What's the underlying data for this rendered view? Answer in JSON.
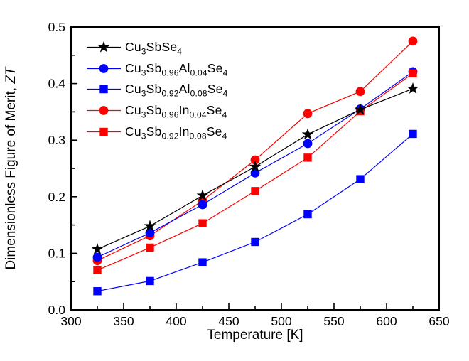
{
  "figure": {
    "background": "#ffffff",
    "frame_color": "#000000"
  },
  "chart_data": {
    "type": "line",
    "title": "",
    "xlabel": "Temperature [K]",
    "ylabel": "Dimensionless Figure of Merit, ZT",
    "ylabel_main": "Dimensionless Figure of Merit, ",
    "ylabel_italic": "ZT",
    "xlim": [
      300,
      650
    ],
    "ylim": [
      0,
      0.5
    ],
    "x_major_ticks": [
      300,
      350,
      400,
      450,
      500,
      550,
      600,
      650
    ],
    "x_tick_labels": [
      "300",
      "350",
      "400",
      "450",
      "500",
      "550",
      "600",
      "650"
    ],
    "x_minor_ticks": [
      325,
      375,
      425,
      475,
      525,
      575,
      625
    ],
    "y_major_ticks": [
      0,
      0.1,
      0.2,
      0.3,
      0.4,
      0.5
    ],
    "y_tick_labels": [
      "0.0",
      "0.1",
      "0.2",
      "0.3",
      "0.4",
      "0.5"
    ],
    "y_minor_ticks": [
      0.05,
      0.15,
      0.25,
      0.35,
      0.45
    ],
    "grid": false,
    "legend_position": "top-left-inside",
    "x": [
      325,
      375,
      425,
      475,
      525,
      575,
      625
    ],
    "series": [
      {
        "name": "Cu3SbSe4",
        "name_parts": [
          [
            "t",
            "Cu"
          ],
          [
            "s",
            "3"
          ],
          [
            "t",
            "SbSe"
          ],
          [
            "s",
            "4"
          ]
        ],
        "marker": "star",
        "color": "#000000",
        "values": [
          0.107,
          0.148,
          0.202,
          0.253,
          0.31,
          0.354,
          0.391
        ]
      },
      {
        "name": "Cu3Sb0.96Al0.04Se4",
        "name_parts": [
          [
            "t",
            "Cu"
          ],
          [
            "s",
            "3"
          ],
          [
            "t",
            "Sb"
          ],
          [
            "s",
            "0.96"
          ],
          [
            "t",
            "Al"
          ],
          [
            "s",
            "0.04"
          ],
          [
            "t",
            "Se"
          ],
          [
            "s",
            "4"
          ]
        ],
        "marker": "circle",
        "color": "#0000ff",
        "values": [
          0.093,
          0.136,
          0.186,
          0.242,
          0.294,
          0.355,
          0.421
        ]
      },
      {
        "name": "Cu3Sb0.92Al0.08Se4",
        "name_parts": [
          [
            "t",
            "Cu"
          ],
          [
            "s",
            "3"
          ],
          [
            "t",
            "Sb"
          ],
          [
            "s",
            "0.92"
          ],
          [
            "t",
            "Al"
          ],
          [
            "s",
            "0.08"
          ],
          [
            "t",
            "Se"
          ],
          [
            "s",
            "4"
          ]
        ],
        "marker": "square",
        "color": "#0000ff",
        "values": [
          0.033,
          0.051,
          0.084,
          0.12,
          0.169,
          0.231,
          0.311
        ]
      },
      {
        "name": "Cu3Sb0.96In0.04Se4",
        "name_parts": [
          [
            "t",
            "Cu"
          ],
          [
            "s",
            "3"
          ],
          [
            "t",
            "Sb"
          ],
          [
            "s",
            "0.96"
          ],
          [
            "t",
            "In"
          ],
          [
            "s",
            "0.04"
          ],
          [
            "t",
            "Se"
          ],
          [
            "s",
            "4"
          ]
        ],
        "marker": "circle",
        "color": "#ff0000",
        "values": [
          0.087,
          0.131,
          0.193,
          0.265,
          0.347,
          0.386,
          0.475
        ]
      },
      {
        "name": "Cu3Sb0.92In0.08Se4",
        "name_parts": [
          [
            "t",
            "Cu"
          ],
          [
            "s",
            "3"
          ],
          [
            "t",
            "Sb"
          ],
          [
            "s",
            "0.92"
          ],
          [
            "t",
            "In"
          ],
          [
            "s",
            "0.08"
          ],
          [
            "t",
            "Se"
          ],
          [
            "s",
            "4"
          ]
        ],
        "marker": "square",
        "color": "#ff0000",
        "values": [
          0.07,
          0.11,
          0.153,
          0.21,
          0.269,
          0.351,
          0.418
        ]
      }
    ],
    "draw_order": [
      2,
      3,
      1,
      4,
      0
    ]
  }
}
